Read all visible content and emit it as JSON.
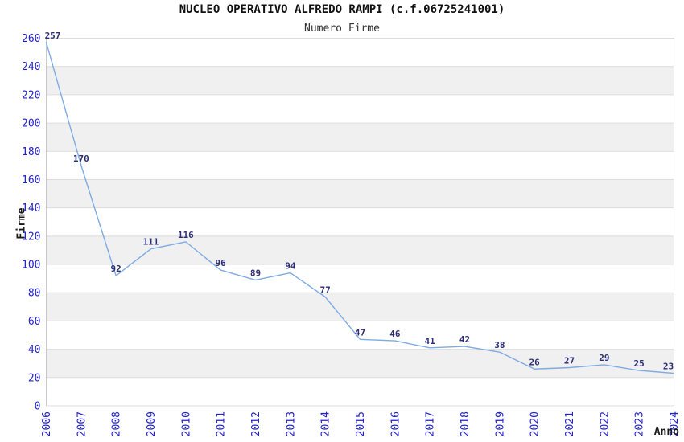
{
  "chart_data": {
    "type": "line",
    "title": "NUCLEO OPERATIVO ALFREDO RAMPI (c.f.06725241001)",
    "subtitle": "Numero Firme",
    "xlabel": "Anno",
    "ylabel": "Firme",
    "x": [
      "2006",
      "2007",
      "2008",
      "2009",
      "2010",
      "2011",
      "2012",
      "2013",
      "2014",
      "2015",
      "2016",
      "2017",
      "2018",
      "2019",
      "2020",
      "2021",
      "2022",
      "2023",
      "2024"
    ],
    "values": [
      257,
      170,
      92,
      111,
      116,
      96,
      89,
      94,
      77,
      47,
      46,
      41,
      42,
      38,
      26,
      27,
      29,
      25,
      23
    ],
    "ylim": [
      0,
      260
    ],
    "y_ticks": [
      0,
      20,
      40,
      60,
      80,
      100,
      120,
      140,
      160,
      180,
      200,
      220,
      240,
      260
    ],
    "grid": true,
    "row_banding": true,
    "data_labels_shown": true,
    "legend": "none",
    "colors": {
      "line": "#7dabe3",
      "tick_label": "#2222cc",
      "data_label": "#2d2d75",
      "grid_line": "#dcdcdc",
      "plot_border": "#c9c9c9",
      "band_fill": "#f0f0f0",
      "title": "#111111",
      "subtitle": "#333333",
      "axis_title": "#1a1a1a",
      "background": "#ffffff"
    }
  }
}
